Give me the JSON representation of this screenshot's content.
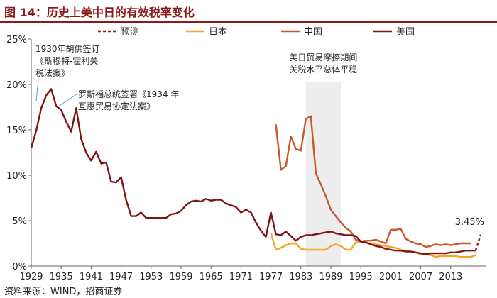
{
  "figure_title": "图 14：历史上美中日的有效税率变化",
  "source": "资料来源：WIND，招商证券",
  "chart_data": {
    "type": "line",
    "title": "",
    "xlabel": "",
    "ylabel": "",
    "ylim": [
      0,
      25
    ],
    "xlim": [
      1929,
      2020
    ],
    "y_ticks": [
      0,
      5,
      10,
      15,
      20,
      25
    ],
    "y_tick_labels": [
      "0%",
      "5%",
      "10%",
      "15%",
      "20%",
      "25%"
    ],
    "x_ticks": [
      1929,
      1935,
      1941,
      1947,
      1953,
      1959,
      1965,
      1971,
      1977,
      1983,
      1989,
      1995,
      2001,
      2007,
      2013
    ],
    "x_tick_labels": [
      "1929",
      "1935",
      "1941",
      "1947",
      "1953",
      "1959",
      "1965",
      "1971",
      "1977",
      "1983",
      "1989",
      "1995",
      "2001",
      "2007",
      "2013"
    ],
    "grid": false,
    "legend_position": "top",
    "highlight_band": {
      "x_start": 1984,
      "x_end": 1991,
      "color": "#ededed"
    },
    "series": [
      {
        "name": "预测",
        "color": "#8b1a1a",
        "dash": true,
        "x": [
          2018,
          2019
        ],
        "y": [
          1.7,
          3.45
        ]
      },
      {
        "name": "日本",
        "color": "#f5a623",
        "dash": false,
        "x": [
          1977,
          1978,
          1979,
          1980,
          1981,
          1982,
          1983,
          1984,
          1985,
          1986,
          1987,
          1988,
          1989,
          1990,
          1991,
          1992,
          1993,
          1994,
          1995,
          1996,
          1997,
          1998,
          1999,
          2000,
          2001,
          2002,
          2003,
          2004,
          2005,
          2006,
          2007,
          2008,
          2009,
          2010,
          2011,
          2012,
          2013,
          2014,
          2015,
          2016,
          2017,
          2018
        ],
        "y": [
          3.6,
          1.8,
          2.0,
          2.3,
          2.5,
          2.5,
          1.9,
          1.8,
          1.8,
          1.8,
          1.8,
          1.8,
          2.2,
          2.4,
          2.2,
          1.8,
          1.8,
          2.6,
          2.7,
          2.6,
          2.5,
          2.4,
          2.3,
          2.2,
          2.1,
          2.0,
          1.8,
          1.7,
          1.6,
          1.5,
          1.3,
          1.3,
          1.2,
          1.0,
          1.1,
          1.1,
          1.1,
          1.1,
          1.0,
          1.0,
          1.0,
          1.2
        ]
      },
      {
        "name": "中国",
        "color": "#c8582a",
        "dash": false,
        "x": [
          1978,
          1979,
          1980,
          1981,
          1982,
          1983,
          1984,
          1985,
          1986,
          1987,
          1988,
          1989,
          1990,
          1991,
          1992,
          1993,
          1994,
          1995,
          1996,
          1997,
          1998,
          1999,
          2000,
          2001,
          2002,
          2003,
          2004,
          2005,
          2006,
          2007,
          2008,
          2009,
          2010,
          2011,
          2012,
          2013,
          2014,
          2015,
          2016,
          2017
        ],
        "y": [
          15.6,
          10.6,
          11.0,
          14.3,
          12.9,
          12.7,
          16.2,
          16.5,
          10.2,
          9.0,
          7.7,
          6.2,
          5.5,
          4.8,
          4.2,
          3.8,
          2.9,
          2.7,
          2.8,
          2.8,
          2.9,
          2.7,
          2.5,
          4.0,
          4.0,
          4.1,
          3.0,
          2.7,
          2.5,
          2.4,
          2.1,
          2.2,
          2.4,
          2.3,
          2.4,
          2.3,
          2.4,
          2.5,
          2.5,
          2.5
        ]
      },
      {
        "name": "美国",
        "color": "#7f1416",
        "dash": false,
        "x": [
          1929,
          1930,
          1931,
          1932,
          1933,
          1934,
          1935,
          1936,
          1937,
          1938,
          1939,
          1940,
          1941,
          1942,
          1943,
          1944,
          1945,
          1946,
          1947,
          1948,
          1949,
          1950,
          1951,
          1952,
          1953,
          1954,
          1955,
          1956,
          1957,
          1958,
          1959,
          1960,
          1961,
          1962,
          1963,
          1964,
          1965,
          1966,
          1967,
          1968,
          1969,
          1970,
          1971,
          1972,
          1973,
          1974,
          1975,
          1976,
          1977,
          1978,
          1979,
          1980,
          1981,
          1982,
          1983,
          1984,
          1985,
          1986,
          1987,
          1988,
          1989,
          1990,
          1991,
          1992,
          1993,
          1994,
          1995,
          1996,
          1997,
          1998,
          1999,
          2000,
          2001,
          2002,
          2003,
          2004,
          2005,
          2006,
          2007,
          2008,
          2009,
          2010,
          2011,
          2012,
          2013,
          2014,
          2015,
          2016,
          2017,
          2018
        ],
        "y": [
          13.0,
          14.9,
          17.4,
          18.8,
          19.5,
          17.6,
          17.2,
          15.9,
          14.8,
          17.4,
          14.0,
          12.5,
          11.6,
          12.6,
          11.3,
          11.4,
          9.3,
          9.2,
          9.8,
          7.3,
          5.5,
          5.5,
          5.9,
          5.3,
          5.3,
          5.3,
          5.3,
          5.3,
          5.7,
          5.8,
          6.1,
          6.7,
          7.1,
          7.2,
          7.1,
          7.4,
          7.2,
          7.3,
          7.3,
          6.9,
          6.7,
          6.5,
          5.9,
          6.2,
          5.9,
          4.8,
          3.9,
          3.2,
          5.9,
          3.5,
          3.4,
          3.8,
          3.3,
          2.8,
          3.2,
          3.4,
          3.4,
          3.5,
          3.6,
          3.7,
          3.8,
          3.6,
          3.5,
          3.4,
          3.4,
          3.3,
          2.7,
          2.6,
          2.4,
          2.2,
          2.1,
          1.9,
          1.8,
          1.7,
          1.7,
          1.6,
          1.6,
          1.5,
          1.4,
          1.3,
          1.4,
          1.4,
          1.4,
          1.4,
          1.5,
          1.5,
          1.6,
          1.7,
          1.7,
          1.7
        ]
      }
    ],
    "annotations": [
      {
        "id": "smoot",
        "lines": [
          "1930年胡佛签订",
          "《斯穆特-霍利关",
          "税法案》"
        ],
        "x": 1930,
        "y": 18.2,
        "arrow": true
      },
      {
        "id": "rta",
        "lines": [
          "罗斯福总统签署《1934 年",
          "互惠贸易协定法案》"
        ],
        "x": 1934,
        "y": 17.9,
        "arrow": true
      },
      {
        "id": "friction",
        "lines": [
          "美日贸易摩擦期间",
          "关税水平总体平稳"
        ],
        "x": 1987.5,
        "y": 24,
        "arrow": false
      },
      {
        "id": "forecast-label",
        "lines": [
          "3.45%"
        ],
        "x": 2019,
        "y": 3.45,
        "arrow": false
      }
    ]
  }
}
